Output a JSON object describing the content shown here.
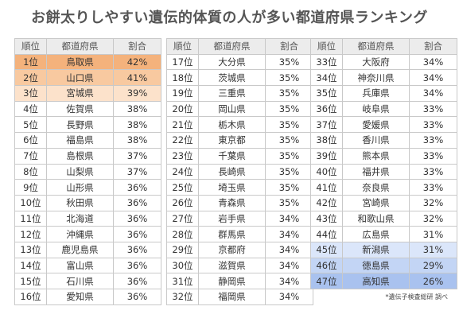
{
  "title": "お餅太りしやすい遺伝的体質の人が多い都道府県ランキング",
  "headers": {
    "rank": "順位",
    "pref": "都道府県",
    "pct": "割合"
  },
  "columns": [
    [
      {
        "rank": "1位",
        "pref": "鳥取県",
        "pct": "42%",
        "hl": "hl1"
      },
      {
        "rank": "2位",
        "pref": "山口県",
        "pct": "41%",
        "hl": "hl2"
      },
      {
        "rank": "3位",
        "pref": "宮城県",
        "pct": "39%",
        "hl": "hl3"
      },
      {
        "rank": "4位",
        "pref": "佐賀県",
        "pct": "38%"
      },
      {
        "rank": "5位",
        "pref": "長野県",
        "pct": "38%"
      },
      {
        "rank": "6位",
        "pref": "福島県",
        "pct": "38%"
      },
      {
        "rank": "7位",
        "pref": "島根県",
        "pct": "37%"
      },
      {
        "rank": "8位",
        "pref": "山梨県",
        "pct": "37%"
      },
      {
        "rank": "9位",
        "pref": "山形県",
        "pct": "36%"
      },
      {
        "rank": "10位",
        "pref": "秋田県",
        "pct": "36%"
      },
      {
        "rank": "11位",
        "pref": "北海道",
        "pct": "36%"
      },
      {
        "rank": "12位",
        "pref": "沖縄県",
        "pct": "36%"
      },
      {
        "rank": "13位",
        "pref": "鹿児島県",
        "pct": "36%"
      },
      {
        "rank": "14位",
        "pref": "富山県",
        "pct": "36%"
      },
      {
        "rank": "15位",
        "pref": "石川県",
        "pct": "36%"
      },
      {
        "rank": "16位",
        "pref": "愛知県",
        "pct": "36%"
      }
    ],
    [
      {
        "rank": "17位",
        "pref": "大分県",
        "pct": "35%"
      },
      {
        "rank": "18位",
        "pref": "茨城県",
        "pct": "35%"
      },
      {
        "rank": "19位",
        "pref": "三重県",
        "pct": "35%"
      },
      {
        "rank": "20位",
        "pref": "岡山県",
        "pct": "35%"
      },
      {
        "rank": "21位",
        "pref": "栃木県",
        "pct": "35%"
      },
      {
        "rank": "22位",
        "pref": "東京都",
        "pct": "35%"
      },
      {
        "rank": "23位",
        "pref": "千葉県",
        "pct": "35%"
      },
      {
        "rank": "24位",
        "pref": "長崎県",
        "pct": "35%"
      },
      {
        "rank": "25位",
        "pref": "埼玉県",
        "pct": "35%"
      },
      {
        "rank": "26位",
        "pref": "青森県",
        "pct": "35%"
      },
      {
        "rank": "27位",
        "pref": "岩手県",
        "pct": "34%"
      },
      {
        "rank": "28位",
        "pref": "群馬県",
        "pct": "34%"
      },
      {
        "rank": "29位",
        "pref": "京都府",
        "pct": "34%"
      },
      {
        "rank": "30位",
        "pref": "滋賀県",
        "pct": "34%"
      },
      {
        "rank": "31位",
        "pref": "静岡県",
        "pct": "34%"
      },
      {
        "rank": "32位",
        "pref": "福岡県",
        "pct": "34%"
      }
    ],
    [
      {
        "rank": "33位",
        "pref": "大阪府",
        "pct": "34%"
      },
      {
        "rank": "34位",
        "pref": "神奈川県",
        "pct": "34%"
      },
      {
        "rank": "35位",
        "pref": "兵庫県",
        "pct": "34%"
      },
      {
        "rank": "36位",
        "pref": "岐阜県",
        "pct": "33%"
      },
      {
        "rank": "37位",
        "pref": "愛媛県",
        "pct": "33%"
      },
      {
        "rank": "38位",
        "pref": "香川県",
        "pct": "33%"
      },
      {
        "rank": "39位",
        "pref": "熊本県",
        "pct": "33%"
      },
      {
        "rank": "40位",
        "pref": "福井県",
        "pct": "33%"
      },
      {
        "rank": "41位",
        "pref": "奈良県",
        "pct": "33%"
      },
      {
        "rank": "42位",
        "pref": "宮崎県",
        "pct": "32%"
      },
      {
        "rank": "43位",
        "pref": "和歌山県",
        "pct": "32%"
      },
      {
        "rank": "44位",
        "pref": "広島県",
        "pct": "31%"
      },
      {
        "rank": "45位",
        "pref": "新潟県",
        "pct": "31%",
        "hl": "bl1"
      },
      {
        "rank": "46位",
        "pref": "徳島県",
        "pct": "29%",
        "hl": "bl2"
      },
      {
        "rank": "47位",
        "pref": "高知県",
        "pct": "26%",
        "hl": "bl3"
      }
    ]
  ],
  "note": "*遺伝子検査総研 調べ"
}
